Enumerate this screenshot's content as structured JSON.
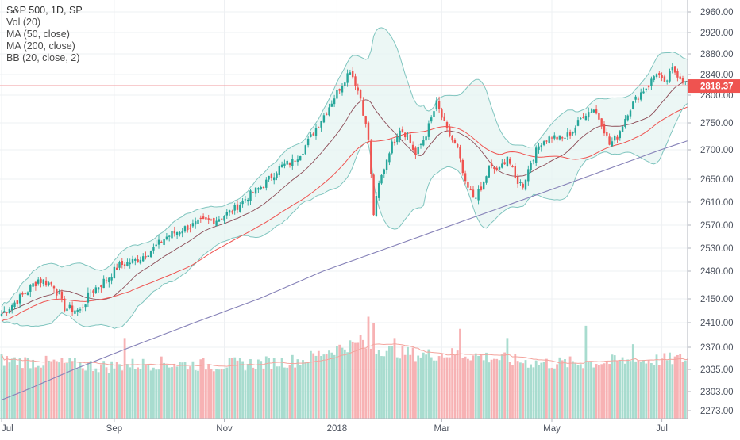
{
  "legend": {
    "title": "S&P 500, 1D, SP",
    "indicators": [
      "Vol (20)",
      "MA (50, close)",
      "MA (200, close)",
      "BB (20, close, 2)"
    ]
  },
  "price_label": "2818.37",
  "colors": {
    "up": "#26a69a",
    "down": "#ef5350",
    "up_volume": "#a8dccf",
    "down_volume": "#f7b2b4",
    "bb_line": "#80c5bf",
    "bb_fill": "#e6f4f2",
    "bb_basis": "#8b4a55",
    "ma50": "#ef5350",
    "ma200": "#8682b8",
    "vol_ma": "#f4a49d",
    "price_line": "#f19a9e",
    "price_badge": "#ef5350",
    "grid": "#eef0f3"
  },
  "chart_data": {
    "type": "candlestick",
    "symbol": "S&P 500",
    "interval": "1D",
    "exchange": "SP",
    "ylim": [
      2250,
      2980
    ],
    "y_ticks": [
      "2960.00",
      "2920.00",
      "2880.00",
      "2840.00",
      "2800.00",
      "2750.00",
      "2700.00",
      "2650.00",
      "2610.00",
      "2570.00",
      "2530.00",
      "2490.00",
      "2450.00",
      "2410.00",
      "2370.00",
      "2335.00",
      "2303.00",
      "2273.00"
    ],
    "x_ticks": [
      "Jul",
      "Sep",
      "Nov",
      "2018",
      "Mar",
      "May",
      "Jul"
    ],
    "last_price": 2818.37,
    "price_anchors": [
      [
        0,
        2425
      ],
      [
        8,
        2455
      ],
      [
        14,
        2478
      ],
      [
        20,
        2470
      ],
      [
        24,
        2435
      ],
      [
        30,
        2430
      ],
      [
        34,
        2460
      ],
      [
        40,
        2478
      ],
      [
        45,
        2500
      ],
      [
        52,
        2510
      ],
      [
        58,
        2530
      ],
      [
        63,
        2550
      ],
      [
        70,
        2565
      ],
      [
        76,
        2575
      ],
      [
        82,
        2580
      ],
      [
        88,
        2595
      ],
      [
        94,
        2620
      ],
      [
        100,
        2640
      ],
      [
        106,
        2670
      ],
      [
        111,
        2680
      ],
      [
        115,
        2700
      ],
      [
        120,
        2740
      ],
      [
        125,
        2780
      ],
      [
        130,
        2822
      ],
      [
        133,
        2850
      ],
      [
        137,
        2795
      ],
      [
        140,
        2720
      ],
      [
        142,
        2590
      ],
      [
        144,
        2640
      ],
      [
        148,
        2700
      ],
      [
        152,
        2740
      ],
      [
        155,
        2725
      ],
      [
        158,
        2690
      ],
      [
        162,
        2730
      ],
      [
        166,
        2785
      ],
      [
        170,
        2735
      ],
      [
        174,
        2700
      ],
      [
        177,
        2640
      ],
      [
        180,
        2620
      ],
      [
        183,
        2630
      ],
      [
        186,
        2670
      ],
      [
        190,
        2665
      ],
      [
        193,
        2690
      ],
      [
        196,
        2650
      ],
      [
        199,
        2640
      ],
      [
        202,
        2680
      ],
      [
        206,
        2715
      ],
      [
        210,
        2725
      ],
      [
        214,
        2720
      ],
      [
        218,
        2735
      ],
      [
        222,
        2765
      ],
      [
        226,
        2775
      ],
      [
        229,
        2750
      ],
      [
        232,
        2710
      ],
      [
        235,
        2725
      ],
      [
        239,
        2770
      ],
      [
        243,
        2800
      ],
      [
        247,
        2820
      ],
      [
        250,
        2845
      ],
      [
        253,
        2820
      ],
      [
        256,
        2850
      ],
      [
        259,
        2835
      ],
      [
        262,
        2818
      ]
    ],
    "volume_anchors": [
      [
        0,
        2350
      ],
      [
        20,
        2345
      ],
      [
        40,
        2340
      ],
      [
        60,
        2345
      ],
      [
        80,
        2342
      ],
      [
        100,
        2345
      ],
      [
        115,
        2350
      ],
      [
        125,
        2365
      ],
      [
        134,
        2375
      ],
      [
        140,
        2370
      ],
      [
        148,
        2365
      ],
      [
        160,
        2358
      ],
      [
        175,
        2360
      ],
      [
        190,
        2352
      ],
      [
        205,
        2345
      ],
      [
        220,
        2345
      ],
      [
        235,
        2348
      ],
      [
        250,
        2350
      ],
      [
        262,
        2352
      ]
    ],
    "volume_spikes": [
      [
        47,
        2385
      ],
      [
        137,
        2390
      ],
      [
        140,
        2420
      ],
      [
        142,
        2410
      ],
      [
        150,
        2385
      ],
      [
        175,
        2400
      ],
      [
        193,
        2385
      ],
      [
        223,
        2405
      ],
      [
        241,
        2375
      ]
    ]
  }
}
